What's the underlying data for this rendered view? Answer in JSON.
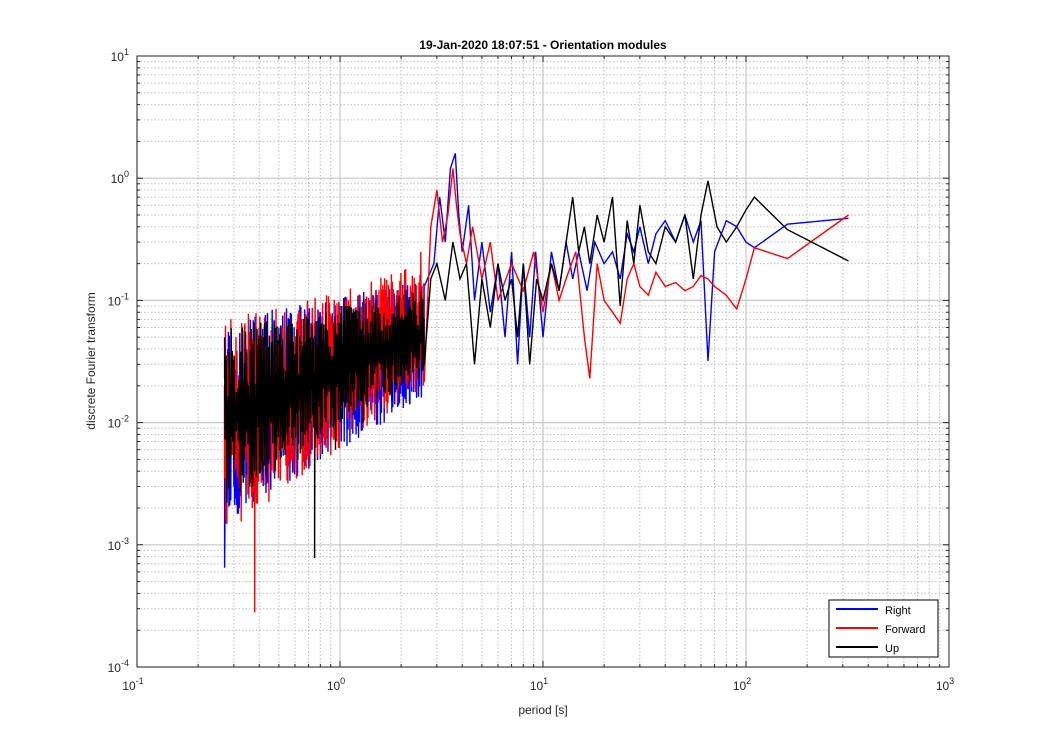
{
  "chart_data": {
    "type": "line",
    "title": "19-Jan-2020 18:07:51 - Orientation modules",
    "xlabel": "period [s]",
    "ylabel": "discrete Fourier transform",
    "x_scale": "log",
    "y_scale": "log",
    "xlim": [
      0.1,
      1000
    ],
    "ylim": [
      0.0001,
      10
    ],
    "x_ticks": [
      {
        "base": "10",
        "exp": "-1",
        "value": 0.1
      },
      {
        "base": "10",
        "exp": "0",
        "value": 1
      },
      {
        "base": "10",
        "exp": "1",
        "value": 10
      },
      {
        "base": "10",
        "exp": "2",
        "value": 100
      },
      {
        "base": "10",
        "exp": "3",
        "value": 1000
      }
    ],
    "y_ticks": [
      {
        "base": "10",
        "exp": "-4",
        "value": 0.0001
      },
      {
        "base": "10",
        "exp": "-3",
        "value": 0.001
      },
      {
        "base": "10",
        "exp": "-2",
        "value": 0.01
      },
      {
        "base": "10",
        "exp": "-1",
        "value": 0.1
      },
      {
        "base": "10",
        "exp": "0",
        "value": 1
      },
      {
        "base": "10",
        "exp": "1",
        "value": 10
      }
    ],
    "grid": true,
    "minor_grid": true,
    "legend_position": "bottom-right",
    "series": [
      {
        "name": "Right",
        "color": "#0000ff",
        "dense_band": {
          "x_start": 0.27,
          "x_end": 2.6,
          "low_start": 0.0015,
          "low_end": 0.015,
          "high_start": 0.07,
          "high_end": 0.15
        },
        "x": [
          0.27,
          0.28,
          0.3,
          0.33,
          0.36,
          0.4,
          0.45,
          0.5,
          0.55,
          0.62,
          0.7,
          0.8,
          0.9,
          1.0,
          1.2,
          1.4,
          1.6,
          1.9,
          2.2,
          2.6,
          2.9,
          3.1,
          3.3,
          3.5,
          3.7,
          3.85,
          4.0,
          4.3,
          4.6,
          5.0,
          5.5,
          6.0,
          6.5,
          7.0,
          7.5,
          8.0,
          8.6,
          9.2,
          10.0,
          11.0,
          12.0,
          13.0,
          14.0,
          15.0,
          16.5,
          18.0,
          20.0,
          22.0,
          24.0,
          26.0,
          28.0,
          30.0,
          33.0,
          36.0,
          40.0,
          45.0,
          50.0,
          55.0,
          60.0,
          65.0,
          70.0,
          80.0,
          90.0,
          100.0,
          110.0,
          160.0,
          320.0
        ],
        "y": [
          0.00065,
          0.04,
          0.003,
          0.05,
          0.0045,
          0.06,
          0.005,
          0.06,
          0.004,
          0.07,
          0.006,
          0.08,
          0.007,
          0.09,
          0.008,
          0.1,
          0.012,
          0.11,
          0.015,
          0.13,
          0.2,
          0.7,
          0.3,
          1.2,
          1.6,
          0.5,
          0.25,
          0.6,
          0.1,
          0.3,
          0.08,
          0.2,
          0.05,
          0.25,
          0.03,
          0.2,
          0.05,
          0.25,
          0.05,
          0.25,
          0.12,
          0.3,
          0.15,
          0.25,
          0.12,
          0.3,
          0.2,
          0.25,
          0.15,
          0.35,
          0.25,
          0.4,
          0.2,
          0.35,
          0.45,
          0.3,
          0.5,
          0.3,
          0.45,
          0.032,
          0.25,
          0.45,
          0.4,
          0.3,
          0.27,
          0.42,
          0.47
        ]
      },
      {
        "name": "Forward",
        "color": "#ff0000",
        "dense_band": {
          "x_start": 0.27,
          "x_end": 2.6,
          "low_start": 0.0012,
          "low_end": 0.02,
          "high_start": 0.07,
          "high_end": 0.2
        },
        "x": [
          0.27,
          0.29,
          0.31,
          0.34,
          0.37,
          0.38,
          0.42,
          0.47,
          0.52,
          0.58,
          0.65,
          0.73,
          0.82,
          0.95,
          1.1,
          1.3,
          1.5,
          1.8,
          2.1,
          2.5,
          2.8,
          3.0,
          3.2,
          3.4,
          3.6,
          3.75,
          3.9,
          4.2,
          4.5,
          5.0,
          5.5,
          6.0,
          7.0,
          8.0,
          9.0,
          10.0,
          11.0,
          12.0,
          13.0,
          14.5,
          16.0,
          17.0,
          18.5,
          20.0,
          22.0,
          24.0,
          26.0,
          28.0,
          30.0,
          33.0,
          36.0,
          40.0,
          45.0,
          50.0,
          55.0,
          60.0,
          65.0,
          70.0,
          80.0,
          90.0,
          100.0,
          110.0,
          160.0,
          320.0
        ],
        "y": [
          0.0035,
          0.07,
          0.0045,
          0.065,
          0.002,
          0.00028,
          0.05,
          0.004,
          0.06,
          0.005,
          0.07,
          0.006,
          0.08,
          0.007,
          0.1,
          0.009,
          0.12,
          0.02,
          0.15,
          0.25,
          0.4,
          0.8,
          0.3,
          0.5,
          1.2,
          0.6,
          0.35,
          0.2,
          0.4,
          0.15,
          0.3,
          0.1,
          0.2,
          0.12,
          0.25,
          0.08,
          0.2,
          0.1,
          0.15,
          0.25,
          0.05,
          0.023,
          0.2,
          0.1,
          0.08,
          0.065,
          0.15,
          0.2,
          0.13,
          0.11,
          0.17,
          0.13,
          0.14,
          0.12,
          0.13,
          0.16,
          0.15,
          0.13,
          0.11,
          0.085,
          0.15,
          0.27,
          0.22,
          0.5
        ]
      },
      {
        "name": "Up",
        "color": "#000000",
        "dense_band": {
          "x_start": 0.27,
          "x_end": 2.6,
          "low_start": 0.002,
          "low_end": 0.025,
          "high_start": 0.06,
          "high_end": 0.12
        },
        "x": [
          0.27,
          0.3,
          0.33,
          0.37,
          0.42,
          0.48,
          0.55,
          0.62,
          0.7,
          0.75,
          0.85,
          0.95,
          1.1,
          1.3,
          1.5,
          1.8,
          2.1,
          2.5,
          2.8,
          3.0,
          3.3,
          3.6,
          3.9,
          4.2,
          4.6,
          5.0,
          5.5,
          6.0,
          6.5,
          7.0,
          7.5,
          8.0,
          8.6,
          9.3,
          10.0,
          11.0,
          12.0,
          13.0,
          14.0,
          15.0,
          16.0,
          17.0,
          18.5,
          20.0,
          22.0,
          24.0,
          26.0,
          28.0,
          30.0,
          33.0,
          36.0,
          40.0,
          45.0,
          50.0,
          55.0,
          60.0,
          65.0,
          72.0,
          80.0,
          90.0,
          100.0,
          110.0,
          160.0,
          320.0
        ],
        "y": [
          0.05,
          0.005,
          0.06,
          0.003,
          0.05,
          0.004,
          0.06,
          0.005,
          0.07,
          0.00078,
          0.08,
          0.006,
          0.09,
          0.01,
          0.1,
          0.015,
          0.12,
          0.1,
          0.15,
          0.2,
          0.1,
          0.3,
          0.15,
          0.2,
          0.03,
          0.15,
          0.06,
          0.2,
          0.1,
          0.15,
          0.05,
          0.2,
          0.03,
          0.15,
          0.1,
          0.2,
          0.12,
          0.3,
          0.7,
          0.25,
          0.4,
          0.2,
          0.5,
          0.3,
          0.7,
          0.09,
          0.45,
          0.2,
          0.6,
          0.25,
          0.2,
          0.4,
          0.3,
          0.5,
          0.15,
          0.5,
          0.95,
          0.4,
          0.3,
          0.4,
          0.55,
          0.7,
          0.38,
          0.21
        ]
      }
    ]
  }
}
